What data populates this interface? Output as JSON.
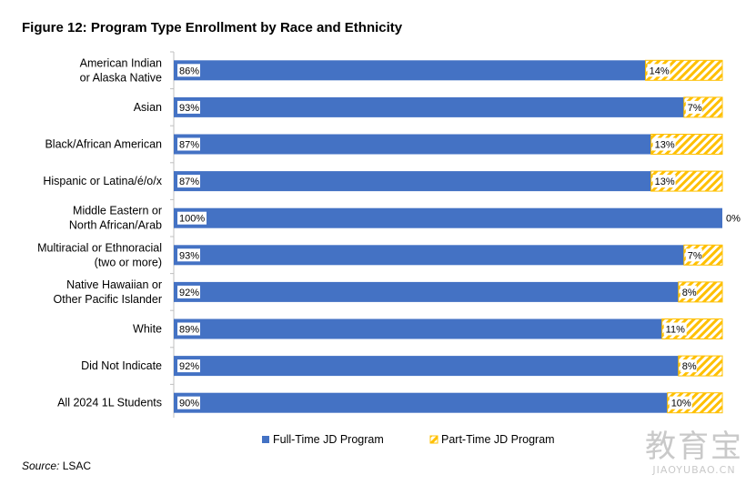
{
  "title": "Figure 12: Program Type Enrollment by Race and Ethnicity",
  "source": {
    "label": "Source:",
    "text": " LSAC"
  },
  "watermark": {
    "cn": "教育宝",
    "en": "JIAOYUBAO.CN"
  },
  "colors": {
    "full_time": "#4472C4",
    "part_time": "#FFC000",
    "axis": "#bfbfbf"
  },
  "chart_data": {
    "type": "bar",
    "orientation": "horizontal",
    "stacked": true,
    "percent_scale": true,
    "xlim": [
      0,
      100
    ],
    "title": "Figure 12: Program Type Enrollment by Race and Ethnicity",
    "legend_position": "bottom",
    "grid": false,
    "categories": [
      "American Indian\nor Alaska Native",
      "Asian",
      "Black/African American",
      "Hispanic or Latina/é/o/x",
      "Middle Eastern or\nNorth African/Arab",
      "Multiracial or Ethnoracial\n(two or more)",
      "Native Hawaiian or\nOther Pacific Islander",
      "White",
      "Did Not Indicate",
      "All 2024 1L Students"
    ],
    "series": [
      {
        "name": "Full-Time JD Program",
        "values": [
          86,
          93,
          87,
          87,
          100,
          93,
          92,
          89,
          92,
          90
        ],
        "pattern": "solid"
      },
      {
        "name": "Part-Time JD Program",
        "values": [
          14,
          7,
          13,
          13,
          0,
          7,
          8,
          11,
          8,
          10
        ],
        "pattern": "hatched"
      }
    ],
    "data_labels": [
      [
        "86%",
        "93%",
        "87%",
        "87%",
        "100%",
        "93%",
        "92%",
        "89%",
        "92%",
        "90%"
      ],
      [
        "14%",
        "7%",
        "13%",
        "13%",
        "0%",
        "7%",
        "8%",
        "11%",
        "8%",
        "10%"
      ]
    ]
  }
}
